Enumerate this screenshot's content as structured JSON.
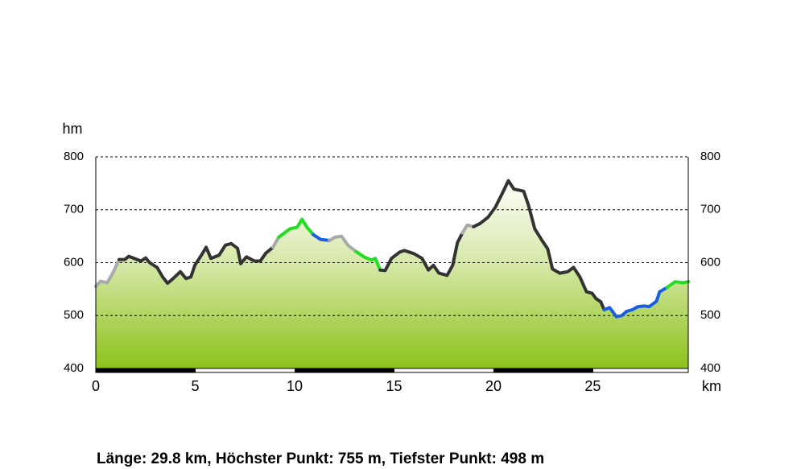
{
  "chart_data": {
    "type": "line",
    "y_label": "hm",
    "x_label": "km",
    "footer": "Länge: 29.8 km, Höchster Punkt: 755 m, Tiefster Punkt: 498 m",
    "xlim": [
      0,
      29.8
    ],
    "xticks": [
      0,
      5,
      10,
      15,
      20,
      25
    ],
    "ylim": [
      400,
      800
    ],
    "yticks": [
      400,
      500,
      600,
      700,
      800
    ],
    "grid": true,
    "series": [
      {
        "color": "#aaaaaa",
        "x": [
          0,
          0.24,
          0.57,
          0.85,
          1.18
        ],
        "values": [
          555,
          565,
          562,
          580,
          606
        ]
      },
      {
        "color": "#333333",
        "x": [
          1.18,
          1.46,
          1.66,
          2.27,
          2.51,
          2.71,
          3.08,
          3.36,
          3.61,
          3.89,
          4.25,
          4.54,
          4.78,
          4.98,
          5.31,
          5.55,
          5.79,
          6.2,
          6.52,
          6.81,
          7.13,
          7.29,
          7.58,
          7.98,
          8.27,
          8.55,
          8.91
        ],
        "values": [
          606,
          606,
          612,
          603,
          609,
          600,
          591,
          573,
          561,
          570,
          583,
          570,
          573,
          595,
          614,
          629,
          608,
          614,
          633,
          636,
          627,
          598,
          611,
          603,
          603,
          618,
          629
        ]
      },
      {
        "color": "#aaaaaa",
        "x": [
          8.91,
          9.2
        ],
        "values": [
          629,
          648
        ]
      },
      {
        "color": "#22dd22",
        "x": [
          9.2,
          9.48,
          9.77,
          10.13,
          10.37,
          10.62,
          10.94
        ],
        "values": [
          648,
          656,
          664,
          667,
          682,
          667,
          653
        ]
      },
      {
        "color": "#1a5fe0",
        "x": [
          10.94,
          11.3,
          11.75
        ],
        "values": [
          653,
          644,
          642
        ]
      },
      {
        "color": "#aaaaaa",
        "x": [
          11.75,
          12.03,
          12.36,
          12.68,
          13.09
        ],
        "values": [
          642,
          648,
          650,
          633,
          621
        ]
      },
      {
        "color": "#22dd22",
        "x": [
          13.09,
          13.49,
          13.86,
          14.06,
          14.3
        ],
        "values": [
          621,
          611,
          605,
          608,
          586
        ]
      },
      {
        "color": "#333333",
        "x": [
          14.3,
          14.55,
          14.87,
          15.28,
          15.52,
          16.0,
          16.41,
          16.73,
          16.98,
          17.26,
          17.67,
          17.95,
          18.19,
          18.44
        ],
        "values": [
          586,
          585,
          608,
          620,
          623,
          617,
          608,
          586,
          595,
          580,
          576,
          595,
          638,
          656
        ]
      },
      {
        "color": "#aaaaaa",
        "x": [
          18.44,
          18.68,
          19.0
        ],
        "values": [
          656,
          671,
          668
        ]
      },
      {
        "color": "#333333",
        "x": [
          19.0,
          19.33,
          19.73,
          20.1,
          20.46,
          20.75,
          21.03,
          21.52,
          21.76,
          22.08,
          22.41,
          22.73,
          22.97,
          23.34,
          23.74,
          24.03,
          24.35,
          24.68,
          24.96,
          25.16,
          25.4,
          25.57
        ],
        "values": [
          668,
          674,
          686,
          705,
          732,
          755,
          739,
          735,
          709,
          664,
          644,
          626,
          588,
          580,
          583,
          591,
          573,
          545,
          542,
          532,
          526,
          511
        ]
      },
      {
        "color": "#1a5fe0",
        "x": [
          25.57,
          25.85,
          26.18,
          26.46,
          26.7,
          26.99,
          27.27,
          27.59,
          27.84,
          28.2,
          28.36,
          28.73
        ],
        "values": [
          511,
          515,
          498,
          500,
          508,
          511,
          517,
          518,
          517,
          527,
          545,
          553
        ]
      },
      {
        "color": "#22dd22",
        "x": [
          28.73,
          29.14,
          29.54,
          29.8
        ],
        "values": [
          553,
          564,
          562,
          564
        ]
      }
    ]
  }
}
